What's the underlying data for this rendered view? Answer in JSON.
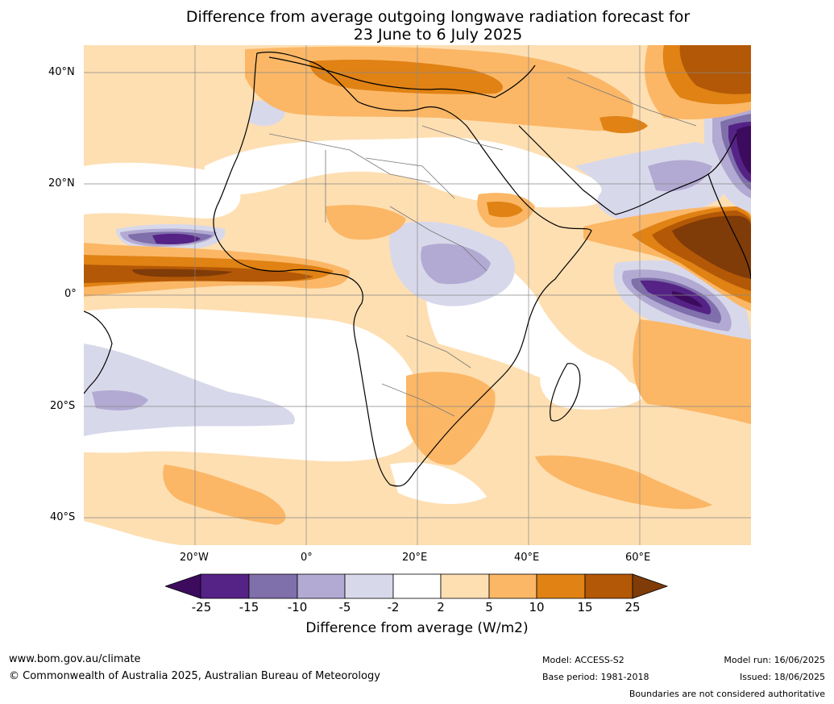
{
  "title": {
    "line1": "Difference from average outgoing longwave radiation forecast for",
    "line2": "23 June to 6 July 2025"
  },
  "axes": {
    "lat_labels": [
      "40°N",
      "20°N",
      "0°",
      "20°S",
      "40°S"
    ],
    "lon_labels": [
      "20°W",
      "0°",
      "20°E",
      "40°E",
      "60°E"
    ]
  },
  "colorbar": {
    "ticks": [
      "-25",
      "-15",
      "-10",
      "-5",
      "-2",
      "2",
      "5",
      "10",
      "15",
      "25"
    ],
    "colors": [
      "#3d0b5e",
      "#552286",
      "#7f6fab",
      "#b2aad3",
      "#d8d8eb",
      "#ffffff",
      "#fedfb2",
      "#fbb766",
      "#e08214",
      "#b35806",
      "#7f3b08"
    ],
    "label": "Difference from average (W/m2)"
  },
  "footer": {
    "website": "www.bom.gov.au/climate",
    "copyright": "© Commonwealth of Australia 2025, Australian Bureau of Meteorology",
    "model": "Model: ACCESS-S2",
    "base_period": "Base period: 1981-2018",
    "model_run": "Model run: 16/06/2025",
    "issued": "Issued: 18/06/2025",
    "disclaimer": "Boundaries are not considered authoritative"
  }
}
